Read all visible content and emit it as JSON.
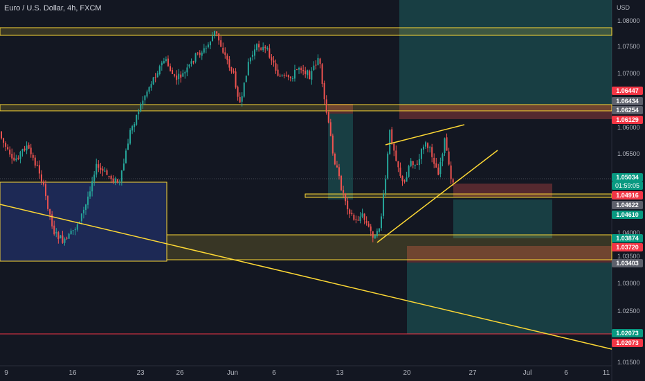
{
  "header": {
    "title": "Euro / U.S. Dollar, 4h, FXCM",
    "currency": "USD"
  },
  "colors": {
    "background": "#131722",
    "up": "#26a69a",
    "down": "#ef5350",
    "drawing": "#fdd835",
    "blue_box": "#3b5bdb",
    "red_line": "#f23645",
    "grid": "#1e222d"
  },
  "x_labels": [
    "9",
    "16",
    "23",
    "26",
    "Jun",
    "6",
    "13",
    "20",
    "27",
    "Jul",
    "6",
    "11"
  ],
  "y_labels": [
    "1.08000",
    "1.07500",
    "1.07000",
    "1.06000",
    "1.05500",
    "1.04000",
    "1.03500",
    "1.03000",
    "1.02500",
    "1.01500"
  ],
  "price_badges": [
    {
      "label": "1.06447",
      "kind": "red"
    },
    {
      "label": "1.06434",
      "kind": "gray"
    },
    {
      "label": "1.06254",
      "kind": "gray"
    },
    {
      "label": "1.06129",
      "kind": "red"
    },
    {
      "label": "1.05034",
      "kind": "green"
    },
    {
      "label": "01:59:05",
      "kind": "green"
    },
    {
      "label": "1.04916",
      "kind": "red"
    },
    {
      "label": "1.04622",
      "kind": "gray"
    },
    {
      "label": "1.04610",
      "kind": "green"
    },
    {
      "label": "1.03874",
      "kind": "green"
    },
    {
      "label": "1.03720",
      "kind": "red"
    },
    {
      "label": "1.03403",
      "kind": "gray"
    },
    {
      "label": "1.02073",
      "kind": "green"
    },
    {
      "label": "1.02073",
      "kind": "red"
    }
  ]
}
